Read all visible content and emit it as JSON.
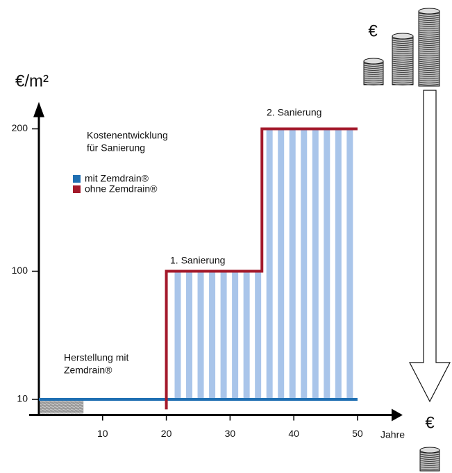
{
  "chart_data": {
    "type": "line",
    "title_lines": [
      "Kostenentwicklung",
      "für Sanierung"
    ],
    "ylabel": "€/m²",
    "xlabel": "Jahre",
    "xlim": [
      0,
      56
    ],
    "xticks": [
      10,
      20,
      30,
      40,
      50
    ],
    "ylim": [
      0,
      215
    ],
    "yticks": [
      10,
      100,
      200
    ],
    "series": [
      {
        "name": "mit Zemdrain®",
        "color": "#1f6fb2",
        "x": [
          0,
          50
        ],
        "values": [
          10,
          10
        ]
      },
      {
        "name": "ohne Zemdrain®",
        "color": "#a3192b",
        "x": [
          20,
          20,
          35,
          35,
          50
        ],
        "values": [
          3,
          100,
          100,
          200,
          200
        ]
      }
    ],
    "annotations": [
      "1. Sanierung",
      "2. Sanierung",
      "Herstellung mit",
      "Zemdrain®"
    ],
    "currency_labels": [
      "€",
      "€"
    ]
  }
}
